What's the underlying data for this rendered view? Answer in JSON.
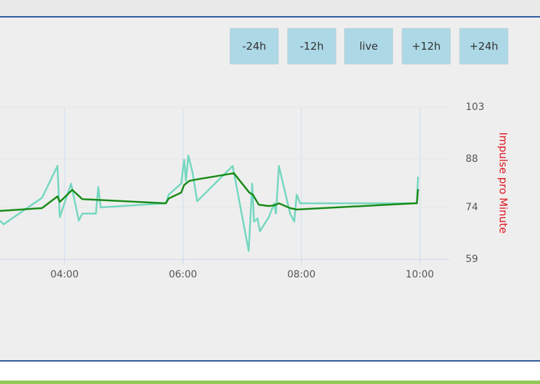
{
  "controls": {
    "buttons": [
      "-24h",
      "-12h",
      "live",
      "+12h",
      "+24h"
    ]
  },
  "chart_data": {
    "type": "line",
    "y_axis_title": "Impulse pro Minute",
    "xlim": [
      2.91,
      10.5
    ],
    "xticks": [
      {
        "value": 4,
        "label": "04:00"
      },
      {
        "value": 6,
        "label": "06:00"
      },
      {
        "value": 8,
        "label": "08:00"
      },
      {
        "value": 10,
        "label": "10:00"
      }
    ],
    "ylim": [
      59,
      103
    ],
    "yticks": [
      59,
      74,
      88,
      103
    ],
    "grid": true,
    "series": [
      {
        "color": "#74d7c0",
        "x": [
          2.91,
          2.97,
          3.62,
          3.88,
          3.92,
          4.11,
          4.24,
          4.3,
          4.53,
          4.57,
          4.61,
          5.71,
          5.76,
          5.97,
          6.02,
          6.05,
          6.09,
          6.16,
          6.24,
          6.84,
          7.11,
          7.17,
          7.2,
          7.26,
          7.3,
          7.45,
          7.54,
          7.57,
          7.62,
          7.81,
          7.88,
          7.92,
          7.98,
          9.95,
          9.97
        ],
        "values": [
          70.2,
          69.1,
          76.8,
          86.0,
          71.2,
          80.9,
          70.2,
          72.2,
          72.2,
          79.9,
          74.0,
          75.2,
          77.7,
          80.9,
          87.8,
          81.7,
          89.0,
          84.3,
          75.8,
          86.0,
          61.4,
          80.9,
          69.9,
          70.8,
          67.1,
          71.2,
          75.2,
          72.2,
          86.0,
          72.2,
          69.9,
          77.7,
          75.2,
          75.2,
          82.9
        ]
      },
      {
        "color": "#168a16",
        "x": [
          2.91,
          3.62,
          3.88,
          3.92,
          4.13,
          4.3,
          5.71,
          5.76,
          5.97,
          6.02,
          6.11,
          6.23,
          6.86,
          7.12,
          7.18,
          7.28,
          7.45,
          7.54,
          7.62,
          7.81,
          7.92,
          9.91,
          9.95,
          9.97
        ],
        "values": [
          73.0,
          73.8,
          77.2,
          75.6,
          79.1,
          76.4,
          75.2,
          76.6,
          78.3,
          80.5,
          81.7,
          82.1,
          83.9,
          78.3,
          77.7,
          74.8,
          74.4,
          74.6,
          75.2,
          73.8,
          73.4,
          75.2,
          75.2,
          79.3
        ]
      }
    ]
  }
}
